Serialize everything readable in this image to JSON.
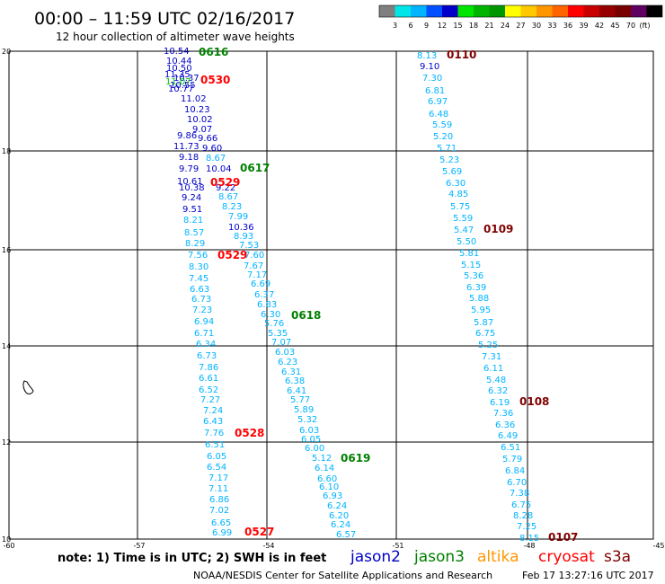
{
  "header": {
    "time_range": "00:00 – 11:59 UTC 02/16/2017",
    "subtitle": "12 hour collection of altimeter wave heights"
  },
  "color_scale": {
    "colors": [
      "#7f7f7f",
      "#00e6e6",
      "#00b4ff",
      "#0050ff",
      "#0000c8",
      "#00e600",
      "#00b400",
      "#009600",
      "#ffff00",
      "#ffc800",
      "#ff9600",
      "#ff6400",
      "#ff0000",
      "#c80000",
      "#960000",
      "#780000",
      "#600060",
      "#000000"
    ],
    "labels": [
      "3",
      "6",
      "9",
      "12",
      "15",
      "18",
      "21",
      "24",
      "27",
      "30",
      "33",
      "36",
      "39",
      "42",
      "45",
      "70",
      "(ft)"
    ]
  },
  "axes": {
    "y_labels": [
      "20",
      "18",
      "16",
      "14",
      "12",
      "10"
    ],
    "x_labels": [
      "-60",
      "-57",
      "-54",
      "-51",
      "-48",
      "-45"
    ]
  },
  "tracks": [
    {
      "id": "0616",
      "color": "#008000"
    },
    {
      "id": "0530",
      "color": "#ff0000"
    },
    {
      "id": "0617",
      "color": "#008000"
    },
    {
      "id": "0529",
      "color": "#ff0000"
    },
    {
      "id": "0529",
      "color": "#ff0000"
    },
    {
      "id": "0618",
      "color": "#008000"
    },
    {
      "id": "0528",
      "color": "#ff0000"
    },
    {
      "id": "0619",
      "color": "#008000"
    },
    {
      "id": "0527",
      "color": "#ff0000"
    },
    {
      "id": "0110",
      "color": "#800000"
    },
    {
      "id": "0109",
      "color": "#800000"
    },
    {
      "id": "0108",
      "color": "#800000"
    },
    {
      "id": "0107",
      "color": "#800000"
    }
  ],
  "wave_heights": [
    {
      "v": "10.54",
      "c": "#0000c8"
    },
    {
      "v": "10.44",
      "c": "#0000c8"
    },
    {
      "v": "10.50",
      "c": "#0000c8"
    },
    {
      "v": "11.35",
      "c": "#0000c8"
    },
    {
      "v": "10.37",
      "c": "#0000c8"
    },
    {
      "v": "11.07",
      "c": "#00c800"
    },
    {
      "v": "10.55",
      "c": "#0000c8"
    },
    {
      "v": "10.77",
      "c": "#0000c8"
    },
    {
      "v": "11.02",
      "c": "#0000c8"
    },
    {
      "v": "10.23",
      "c": "#0000c8"
    },
    {
      "v": "10.02",
      "c": "#0000c8"
    },
    {
      "v": "9.07",
      "c": "#0000c8"
    },
    {
      "v": "9.86",
      "c": "#0000c8"
    },
    {
      "v": "9.66",
      "c": "#0000c8"
    },
    {
      "v": "11.73",
      "c": "#0000c8"
    },
    {
      "v": "9.60",
      "c": "#0000c8"
    },
    {
      "v": "9.18",
      "c": "#0000c8"
    },
    {
      "v": "8.67",
      "c": "#00b4ff"
    },
    {
      "v": "9.79",
      "c": "#0000c8"
    },
    {
      "v": "10.04",
      "c": "#0000c8"
    },
    {
      "v": "10.61",
      "c": "#0000c8"
    },
    {
      "v": "10.38",
      "c": "#0000c8"
    },
    {
      "v": "9.22",
      "c": "#0000c8"
    },
    {
      "v": "9.24",
      "c": "#0000c8"
    },
    {
      "v": "8.67",
      "c": "#00b4ff"
    },
    {
      "v": "9.51",
      "c": "#0000c8"
    },
    {
      "v": "8.23",
      "c": "#00b4ff"
    },
    {
      "v": "8.21",
      "c": "#00b4ff"
    },
    {
      "v": "7.99",
      "c": "#00b4ff"
    },
    {
      "v": "8.57",
      "c": "#00b4ff"
    },
    {
      "v": "10.36",
      "c": "#0000c8"
    },
    {
      "v": "8.93",
      "c": "#00b4ff"
    },
    {
      "v": "8.29",
      "c": "#00b4ff"
    },
    {
      "v": "7.53",
      "c": "#00b4ff"
    },
    {
      "v": "7.56",
      "c": "#00b4ff"
    },
    {
      "v": "7.60",
      "c": "#00b4ff"
    },
    {
      "v": "8.30",
      "c": "#00b4ff"
    },
    {
      "v": "7.67",
      "c": "#00b4ff"
    },
    {
      "v": "7.45",
      "c": "#00b4ff"
    },
    {
      "v": "7.17",
      "c": "#00b4ff"
    },
    {
      "v": "6.63",
      "c": "#00b4ff"
    },
    {
      "v": "6.69",
      "c": "#00b4ff"
    },
    {
      "v": "6.37",
      "c": "#00b4ff"
    },
    {
      "v": "6.73",
      "c": "#00b4ff"
    },
    {
      "v": "6.83",
      "c": "#00b4ff"
    },
    {
      "v": "7.23",
      "c": "#00b4ff"
    },
    {
      "v": "6.30",
      "c": "#00b4ff"
    },
    {
      "v": "6.94",
      "c": "#00b4ff"
    },
    {
      "v": "5.76",
      "c": "#00b4ff"
    },
    {
      "v": "6.71",
      "c": "#00b4ff"
    },
    {
      "v": "5.35",
      "c": "#00b4ff"
    },
    {
      "v": "6.34",
      "c": "#00b4ff"
    },
    {
      "v": "7.07",
      "c": "#00b4ff"
    },
    {
      "v": "6.73",
      "c": "#00b4ff"
    },
    {
      "v": "6.03",
      "c": "#00b4ff"
    },
    {
      "v": "7.86",
      "c": "#00b4ff"
    },
    {
      "v": "6.23",
      "c": "#00b4ff"
    },
    {
      "v": "6.31",
      "c": "#00b4ff"
    },
    {
      "v": "6.61",
      "c": "#00b4ff"
    },
    {
      "v": "6.38",
      "c": "#00b4ff"
    },
    {
      "v": "6.52",
      "c": "#00b4ff"
    },
    {
      "v": "6.41",
      "c": "#00b4ff"
    },
    {
      "v": "7.27",
      "c": "#00b4ff"
    },
    {
      "v": "5.77",
      "c": "#00b4ff"
    },
    {
      "v": "7.24",
      "c": "#00b4ff"
    },
    {
      "v": "5.89",
      "c": "#00b4ff"
    },
    {
      "v": "6.43",
      "c": "#00b4ff"
    },
    {
      "v": "5.32",
      "c": "#00b4ff"
    },
    {
      "v": "7.76",
      "c": "#00b4ff"
    },
    {
      "v": "6.03",
      "c": "#00b4ff"
    },
    {
      "v": "6.05",
      "c": "#00b4ff"
    },
    {
      "v": "6.51",
      "c": "#00b4ff"
    },
    {
      "v": "6.00",
      "c": "#00b4ff"
    },
    {
      "v": "6.05",
      "c": "#00b4ff"
    },
    {
      "v": "5.12",
      "c": "#00b4ff"
    },
    {
      "v": "6.54",
      "c": "#00b4ff"
    },
    {
      "v": "6.14",
      "c": "#00b4ff"
    },
    {
      "v": "7.17",
      "c": "#00b4ff"
    },
    {
      "v": "6.60",
      "c": "#00b4ff"
    },
    {
      "v": "7.11",
      "c": "#00b4ff"
    },
    {
      "v": "6.10",
      "c": "#00b4ff"
    },
    {
      "v": "6.86",
      "c": "#00b4ff"
    },
    {
      "v": "6.93",
      "c": "#00b4ff"
    },
    {
      "v": "6.24",
      "c": "#00b4ff"
    },
    {
      "v": "7.02",
      "c": "#00b4ff"
    },
    {
      "v": "6.20",
      "c": "#00b4ff"
    },
    {
      "v": "6.65",
      "c": "#00b4ff"
    },
    {
      "v": "6.24",
      "c": "#00b4ff"
    },
    {
      "v": "6.99",
      "c": "#00b4ff"
    },
    {
      "v": "6.57",
      "c": "#00b4ff"
    },
    {
      "v": "8.13",
      "c": "#00b4ff"
    },
    {
      "v": "9.10",
      "c": "#0000c8"
    },
    {
      "v": "7.30",
      "c": "#00b4ff"
    },
    {
      "v": "6.81",
      "c": "#00b4ff"
    },
    {
      "v": "6.97",
      "c": "#00b4ff"
    },
    {
      "v": "6.48",
      "c": "#00b4ff"
    },
    {
      "v": "5.59",
      "c": "#00b4ff"
    },
    {
      "v": "5.20",
      "c": "#00b4ff"
    },
    {
      "v": "5.71",
      "c": "#00b4ff"
    },
    {
      "v": "5.23",
      "c": "#00b4ff"
    },
    {
      "v": "5.69",
      "c": "#00b4ff"
    },
    {
      "v": "6.30",
      "c": "#00b4ff"
    },
    {
      "v": "4.85",
      "c": "#00b4ff"
    },
    {
      "v": "5.75",
      "c": "#00b4ff"
    },
    {
      "v": "5.59",
      "c": "#00b4ff"
    },
    {
      "v": "5.47",
      "c": "#00b4ff"
    },
    {
      "v": "5.50",
      "c": "#00b4ff"
    },
    {
      "v": "5.81",
      "c": "#00b4ff"
    },
    {
      "v": "5.15",
      "c": "#00b4ff"
    },
    {
      "v": "5.36",
      "c": "#00b4ff"
    },
    {
      "v": "6.39",
      "c": "#00b4ff"
    },
    {
      "v": "5.88",
      "c": "#00b4ff"
    },
    {
      "v": "5.95",
      "c": "#00b4ff"
    },
    {
      "v": "5.87",
      "c": "#00b4ff"
    },
    {
      "v": "6.75",
      "c": "#00b4ff"
    },
    {
      "v": "5.25",
      "c": "#00b4ff"
    },
    {
      "v": "7.31",
      "c": "#00b4ff"
    },
    {
      "v": "6.11",
      "c": "#00b4ff"
    },
    {
      "v": "5.48",
      "c": "#00b4ff"
    },
    {
      "v": "6.32",
      "c": "#00b4ff"
    },
    {
      "v": "6.19",
      "c": "#00b4ff"
    },
    {
      "v": "7.36",
      "c": "#00b4ff"
    },
    {
      "v": "6.36",
      "c": "#00b4ff"
    },
    {
      "v": "6.49",
      "c": "#00b4ff"
    },
    {
      "v": "6.51",
      "c": "#00b4ff"
    },
    {
      "v": "5.79",
      "c": "#00b4ff"
    },
    {
      "v": "6.84",
      "c": "#00b4ff"
    },
    {
      "v": "6.70",
      "c": "#00b4ff"
    },
    {
      "v": "7.38",
      "c": "#00b4ff"
    },
    {
      "v": "6.75",
      "c": "#00b4ff"
    },
    {
      "v": "8.28",
      "c": "#00b4ff"
    },
    {
      "v": "7.25",
      "c": "#00b4ff"
    },
    {
      "v": "8.15",
      "c": "#00b4ff"
    }
  ],
  "note": {
    "text": "note: 1) Time is in UTC; 2) SWH is in feet"
  },
  "legend": {
    "jason2": {
      "label": "jason2",
      "color": "#0000c8"
    },
    "jason3": {
      "label": "jason3",
      "color": "#008000"
    },
    "altika": {
      "label": "altika",
      "color": "#ff9600"
    },
    "cryosat": {
      "label": "cryosat",
      "color": "#ff0000"
    },
    "s3a": {
      "label": "s3a",
      "color": "#800000"
    }
  },
  "footer": {
    "credit": "NOAA/NESDIS Center for Satellite Applications and Research",
    "timestamp": "Feb 17 13:27:16 UTC 2017"
  }
}
